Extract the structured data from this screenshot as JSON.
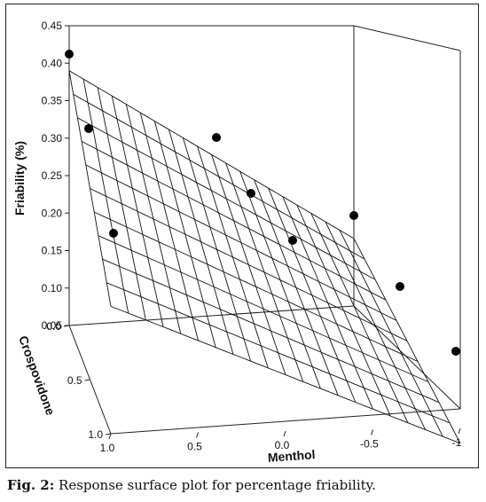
{
  "caption": {
    "label": "Fig. 2:",
    "text": "Response surface plot for percentage friability."
  },
  "chart_data": {
    "type": "surface3d",
    "zlabel": "Friability (%)",
    "xlabel": "Menthol",
    "ylabel": "Crospovidone",
    "zlim": [
      0.05,
      0.45
    ],
    "z_ticks": [
      "0.05",
      "0.10",
      "0.15",
      "0.20",
      "0.25",
      "0.30",
      "0.35",
      "0.40",
      "0.45"
    ],
    "x_ticks": [
      "1.0",
      "0.5",
      "0.0",
      "-0.5",
      "-1"
    ],
    "y_ticks": [
      "0.0",
      "0.5",
      "1.0"
    ],
    "surface_corners": {
      "menthol_1_crospovidone_0": 0.39,
      "menthol_1_crospovidone_1": 0.22,
      "menthol_-1_crospovidone_1": 0.03,
      "menthol_-1_crospovidone_0": 0.14
    },
    "points": [
      {
        "friability": 0.41
      },
      {
        "friability": 0.32
      },
      {
        "friability": 0.17
      },
      {
        "friability": 0.3
      },
      {
        "friability": 0.25
      },
      {
        "friability": 0.16
      },
      {
        "friability": 0.2
      },
      {
        "friability": 0.1
      },
      {
        "friability": 0.04
      }
    ]
  }
}
